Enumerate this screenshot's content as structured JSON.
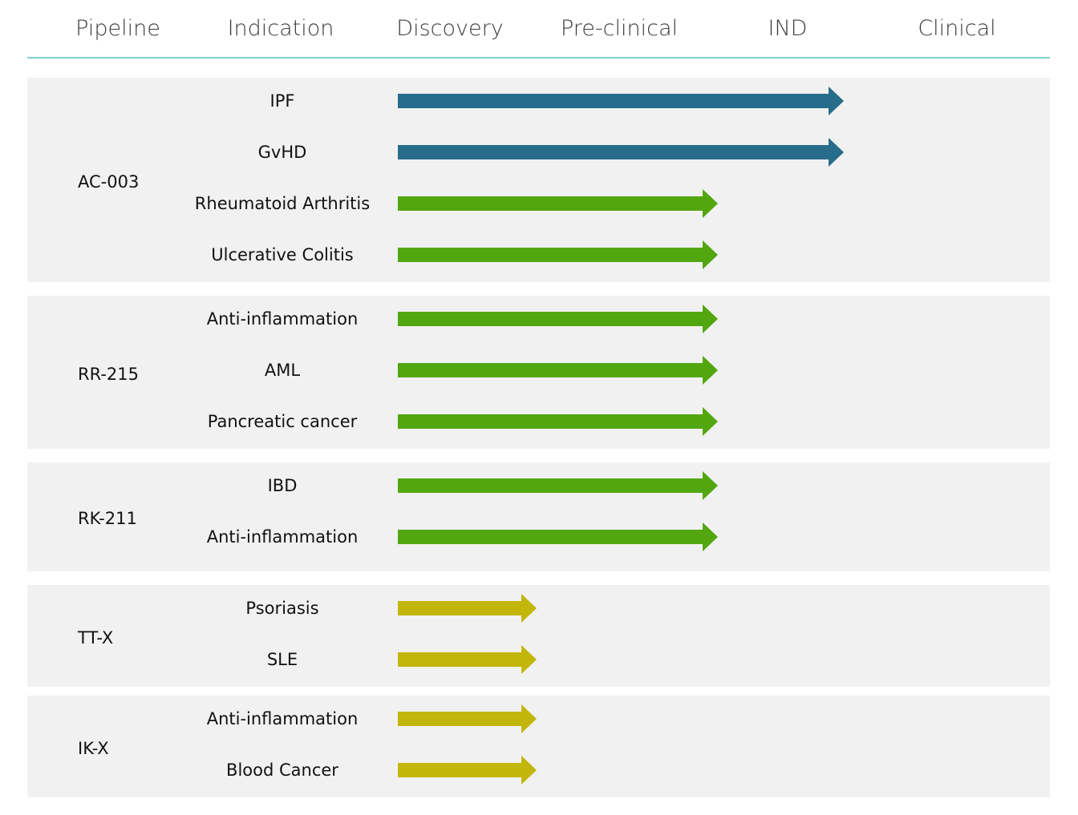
{
  "columns": [
    "Pipeline",
    "Indication",
    "Discovery",
    "Pre-clinical",
    "IND",
    "Clinical"
  ],
  "stages": [
    "Discovery",
    "Pre-clinical",
    "IND",
    "Clinical"
  ],
  "colors": {
    "header_rule": "#7fd0cc",
    "group_background": "#f1f1f1",
    "IND": "#276c8b",
    "Pre-clinical": "#52a711",
    "Discovery": "#c2b60b"
  },
  "programs": [
    {
      "name": "AC-003",
      "indications": [
        {
          "name": "IPF",
          "stage": "IND"
        },
        {
          "name": "GvHD",
          "stage": "IND"
        },
        {
          "name": "Rheumatoid Arthritis",
          "stage": "Pre-clinical"
        },
        {
          "name": "Ulcerative Colitis",
          "stage": "Pre-clinical"
        }
      ]
    },
    {
      "name": "RR-215",
      "indications": [
        {
          "name": "Anti-inflammation",
          "stage": "Pre-clinical"
        },
        {
          "name": "AML",
          "stage": "Pre-clinical"
        },
        {
          "name": "Pancreatic cancer",
          "stage": "Pre-clinical"
        }
      ]
    },
    {
      "name": "RK-211",
      "indications": [
        {
          "name": "IBD",
          "stage": "Pre-clinical"
        },
        {
          "name": "Anti-inflammation",
          "stage": "Pre-clinical"
        }
      ]
    },
    {
      "name": "TT-X",
      "indications": [
        {
          "name": "Psoriasis",
          "stage": "Discovery"
        },
        {
          "name": "SLE",
          "stage": "Discovery"
        }
      ]
    },
    {
      "name": "IK-X",
      "indications": [
        {
          "name": "Anti-inflammation",
          "stage": "Discovery"
        },
        {
          "name": "Blood Cancer",
          "stage": "Discovery"
        }
      ]
    }
  ]
}
